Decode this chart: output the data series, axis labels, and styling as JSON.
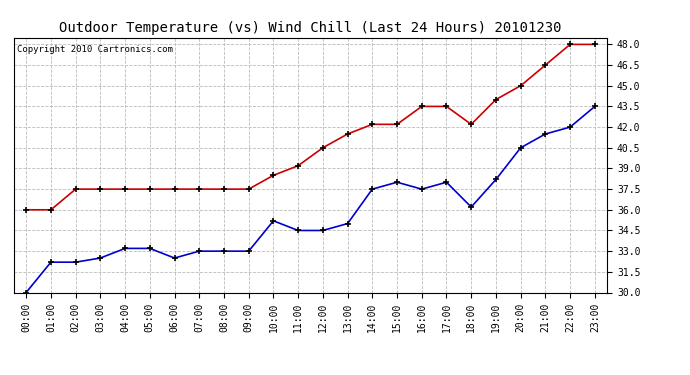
{
  "title": "Outdoor Temperature (vs) Wind Chill (Last 24 Hours) 20101230",
  "copyright": "Copyright 2010 Cartronics.com",
  "x_labels": [
    "00:00",
    "01:00",
    "02:00",
    "03:00",
    "04:00",
    "05:00",
    "06:00",
    "07:00",
    "08:00",
    "09:00",
    "10:00",
    "11:00",
    "12:00",
    "13:00",
    "14:00",
    "15:00",
    "16:00",
    "17:00",
    "18:00",
    "19:00",
    "20:00",
    "21:00",
    "22:00",
    "23:00"
  ],
  "red_y": [
    36.0,
    36.0,
    37.5,
    37.5,
    37.5,
    37.5,
    37.5,
    37.5,
    37.5,
    37.5,
    38.5,
    39.2,
    40.5,
    41.5,
    42.2,
    42.2,
    43.5,
    43.5,
    42.2,
    44.0,
    45.0,
    46.5,
    48.0,
    48.0
  ],
  "blue_y": [
    30.0,
    32.2,
    32.2,
    32.5,
    33.2,
    33.2,
    32.5,
    33.0,
    33.0,
    33.0,
    35.2,
    34.5,
    34.5,
    35.0,
    37.5,
    38.0,
    37.5,
    38.0,
    36.2,
    38.2,
    40.5,
    41.5,
    42.0,
    43.5
  ],
  "red_color": "#cc0000",
  "blue_color": "#0000cc",
  "ylim": [
    30.0,
    48.5
  ],
  "yticks": [
    30.0,
    31.5,
    33.0,
    34.5,
    36.0,
    37.5,
    39.0,
    40.5,
    42.0,
    43.5,
    45.0,
    46.5,
    48.0
  ],
  "bg_color": "#ffffff",
  "grid_color": "#bbbbbb",
  "title_fontsize": 10,
  "copyright_fontsize": 6.5,
  "tick_fontsize": 7
}
